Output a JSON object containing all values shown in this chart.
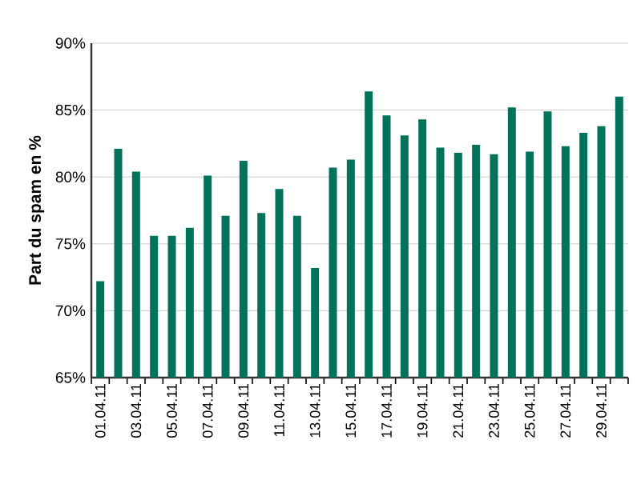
{
  "chart_data": {
    "type": "bar",
    "ylabel": "Part du spam en %",
    "categories": [
      "01.04.11",
      null,
      "03.04.11",
      null,
      "05.04.11",
      null,
      "07.04.11",
      null,
      "09.04.11",
      null,
      "11.04.11",
      null,
      "13.04.11",
      null,
      "15.04.11",
      null,
      "17.04.11",
      null,
      "19.04.11",
      null,
      "21.04.11",
      null,
      "23.04.11",
      null,
      "25.04.11",
      null,
      "27.04.11",
      null,
      "29.04.11",
      null
    ],
    "values": [
      72.2,
      82.1,
      80.4,
      75.6,
      75.6,
      76.2,
      80.1,
      77.1,
      81.2,
      77.3,
      79.1,
      77.1,
      73.2,
      80.7,
      81.3,
      86.4,
      84.6,
      83.1,
      84.3,
      82.2,
      81.8,
      82.4,
      81.7,
      85.2,
      81.9,
      84.9,
      82.3,
      83.3,
      83.8,
      86.0
    ],
    "color": "#00735a",
    "ylim": [
      65,
      90
    ],
    "yticks": [
      {
        "value": 65,
        "label": "65%"
      },
      {
        "value": 70,
        "label": "70%"
      },
      {
        "value": 75,
        "label": "75%"
      },
      {
        "value": 80,
        "label": "80%"
      },
      {
        "value": 85,
        "label": "85%"
      },
      {
        "value": 90,
        "label": "90%"
      }
    ],
    "grid": "y"
  }
}
